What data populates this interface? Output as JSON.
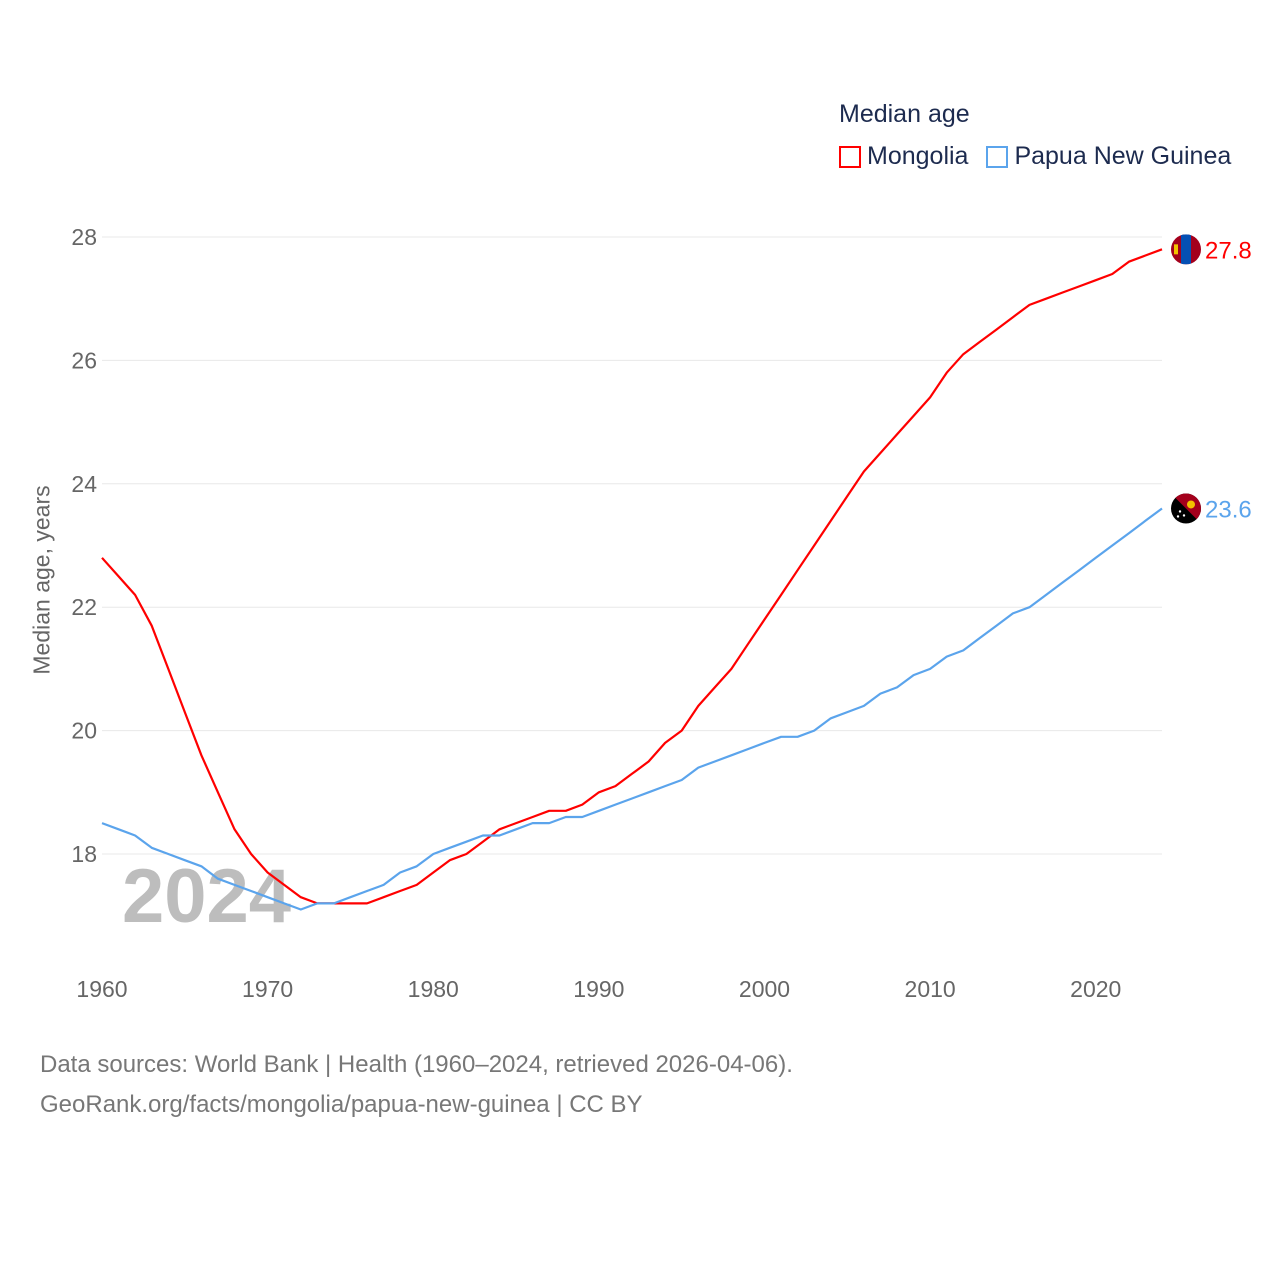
{
  "chart_data": {
    "type": "line",
    "legend_title": "Median age",
    "legend_position": "top-right",
    "ylabel": "Median age, years",
    "xlabel": "",
    "xlim": [
      1960,
      2024
    ],
    "ylim": [
      16.7,
      28.3
    ],
    "yticks": [
      18,
      20,
      22,
      24,
      26,
      28
    ],
    "xticks": [
      1960,
      1970,
      1980,
      1990,
      2000,
      2010,
      2020
    ],
    "grid": true,
    "watermark_year": "2024",
    "x": [
      1960,
      1961,
      1962,
      1963,
      1964,
      1965,
      1966,
      1967,
      1968,
      1969,
      1970,
      1971,
      1972,
      1973,
      1974,
      1975,
      1976,
      1977,
      1978,
      1979,
      1980,
      1981,
      1982,
      1983,
      1984,
      1985,
      1986,
      1987,
      1988,
      1989,
      1990,
      1991,
      1992,
      1993,
      1994,
      1995,
      1996,
      1997,
      1998,
      1999,
      2000,
      2001,
      2002,
      2003,
      2004,
      2005,
      2006,
      2007,
      2008,
      2009,
      2010,
      2011,
      2012,
      2013,
      2014,
      2015,
      2016,
      2017,
      2018,
      2019,
      2020,
      2021,
      2022,
      2023,
      2024
    ],
    "series": [
      {
        "name": "Mongolia",
        "color": "#ff0000",
        "end_label": "27.8",
        "flag": "mongolia-flag",
        "values": [
          22.8,
          22.5,
          22.2,
          21.7,
          21.0,
          20.3,
          19.6,
          19.0,
          18.4,
          18.0,
          17.7,
          17.5,
          17.3,
          17.2,
          17.2,
          17.2,
          17.2,
          17.3,
          17.4,
          17.5,
          17.7,
          17.9,
          18.0,
          18.2,
          18.4,
          18.5,
          18.6,
          18.7,
          18.7,
          18.8,
          19.0,
          19.1,
          19.3,
          19.5,
          19.8,
          20.0,
          20.4,
          20.7,
          21.0,
          21.4,
          21.8,
          22.2,
          22.6,
          23.0,
          23.4,
          23.8,
          24.2,
          24.5,
          24.8,
          25.1,
          25.4,
          25.8,
          26.1,
          26.3,
          26.5,
          26.7,
          26.9,
          27.0,
          27.1,
          27.2,
          27.3,
          27.4,
          27.6,
          27.7,
          27.8
        ]
      },
      {
        "name": "Papua New Guinea",
        "color": "#5ba4ec",
        "end_label": "23.6",
        "flag": "papua-new-guinea-flag",
        "values": [
          18.5,
          18.4,
          18.3,
          18.1,
          18.0,
          17.9,
          17.8,
          17.6,
          17.5,
          17.4,
          17.3,
          17.2,
          17.1,
          17.2,
          17.2,
          17.3,
          17.4,
          17.5,
          17.7,
          17.8,
          18.0,
          18.1,
          18.2,
          18.3,
          18.3,
          18.4,
          18.5,
          18.5,
          18.6,
          18.6,
          18.7,
          18.8,
          18.9,
          19.0,
          19.1,
          19.2,
          19.4,
          19.5,
          19.6,
          19.7,
          19.8,
          19.9,
          19.9,
          20.0,
          20.2,
          20.3,
          20.4,
          20.6,
          20.7,
          20.9,
          21.0,
          21.2,
          21.3,
          21.5,
          21.7,
          21.9,
          22.0,
          22.2,
          22.4,
          22.6,
          22.8,
          23.0,
          23.2,
          23.4,
          23.6
        ]
      }
    ]
  },
  "footer": {
    "line1": "Data sources: World Bank | Health (1960–2024, retrieved 2026-04-06).",
    "line2": "GeoRank.org/facts/mongolia/papua-new-guinea | CC BY"
  }
}
